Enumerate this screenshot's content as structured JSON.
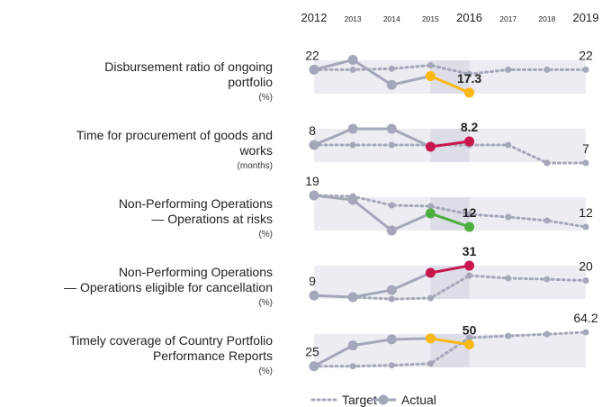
{
  "chart_data": [
    {
      "type": "line",
      "title": "Disbursement ratio of ongoing\nportfolio",
      "unit": "(%)",
      "categories": [
        "2012",
        "2013",
        "2014",
        "2015",
        "2016",
        "2017",
        "2018",
        "2019"
      ],
      "ylim": [
        16,
        25.2
      ],
      "highlight_color": "#fbb812",
      "series": [
        {
          "name": "Target",
          "color": "#a4a7b9",
          "values": [
            22,
            22,
            22.2,
            22.9,
            21.1,
            22,
            22,
            22
          ],
          "value_labels": [
            null,
            null,
            null,
            null,
            null,
            null,
            null,
            "22"
          ]
        },
        {
          "name": "Actual",
          "color": "#a4a7b9",
          "values": [
            22,
            24,
            18.9,
            20.7,
            17.3,
            null,
            null,
            null
          ],
          "value_labels": [
            "22",
            null,
            null,
            null,
            "17.3",
            null,
            null,
            null
          ]
        }
      ]
    },
    {
      "type": "line",
      "title": "Time for procurement of goods and\nworks",
      "unit": "(months)",
      "categories": [
        "2012",
        "2013",
        "2014",
        "2015",
        "2016",
        "2017",
        "2018",
        "2019"
      ],
      "ylim": [
        6.75,
        9.25
      ],
      "highlight_color": "#c8174e",
      "series": [
        {
          "name": "Target",
          "color": "#a4a7b9",
          "values": [
            8,
            8,
            8,
            8,
            8,
            8,
            7,
            7
          ],
          "value_labels": [
            null,
            null,
            null,
            null,
            null,
            null,
            null,
            "7"
          ]
        },
        {
          "name": "Actual",
          "color": "#a4a7b9",
          "values": [
            8,
            8.9,
            8.9,
            7.9,
            8.2,
            null,
            null,
            null
          ],
          "value_labels": [
            "8",
            null,
            null,
            null,
            "8.2",
            null,
            null,
            null
          ]
        }
      ]
    },
    {
      "type": "line",
      "title": "Non-Performing Operations\n— Operations at risks",
      "unit": "(%)",
      "categories": [
        "2012",
        "2013",
        "2014",
        "2015",
        "2016",
        "2017",
        "2018",
        "2019"
      ],
      "ylim": [
        10,
        20
      ],
      "highlight_color": "#4caf3f",
      "series": [
        {
          "name": "Target",
          "color": "#a4a7b9",
          "values": [
            19,
            18.8,
            16.8,
            16.6,
            14.8,
            14.2,
            13.4,
            12
          ],
          "value_labels": [
            null,
            null,
            null,
            null,
            null,
            null,
            null,
            "12"
          ]
        },
        {
          "name": "Actual",
          "color": "#a4a7b9",
          "values": [
            19,
            18,
            11.2,
            15,
            12,
            null,
            null,
            null
          ],
          "value_labels": [
            "19",
            null,
            null,
            null,
            "12",
            null,
            null,
            null
          ]
        }
      ]
    },
    {
      "type": "line",
      "title": "Non-Performing Operations\n— Operations eligible for cancellation",
      "unit": "(%)",
      "categories": [
        "2012",
        "2013",
        "2014",
        "2015",
        "2016",
        "2017",
        "2018",
        "2019"
      ],
      "ylim": [
        2.4,
        35.7
      ],
      "highlight_color": "#c8174e",
      "series": [
        {
          "name": "Target",
          "color": "#a4a7b9",
          "values": [
            null,
            7.7,
            6.3,
            7,
            23.7,
            21.7,
            21,
            20
          ],
          "value_labels": [
            null,
            null,
            null,
            null,
            null,
            null,
            null,
            "20"
          ]
        },
        {
          "name": "Actual",
          "color": "#a4a7b9",
          "values": [
            9,
            7.7,
            13,
            25.7,
            31,
            null,
            null,
            null
          ],
          "value_labels": [
            "9",
            null,
            null,
            null,
            "31",
            null,
            null,
            null
          ]
        }
      ]
    },
    {
      "type": "line",
      "title": "Timely coverage of Country Portfolio\nPerformance Reports",
      "unit": "(%)",
      "categories": [
        "2012",
        "2013",
        "2014",
        "2015",
        "2016",
        "2017",
        "2018",
        "2019"
      ],
      "ylim": [
        17.4,
        69.4
      ],
      "highlight_color": "#fbb812",
      "series": [
        {
          "name": "Target",
          "color": "#a4a7b9",
          "values": [
            25,
            25,
            26,
            28,
            58,
            60,
            62,
            64.2
          ],
          "value_labels": [
            null,
            null,
            null,
            null,
            null,
            null,
            null,
            "64.2"
          ]
        },
        {
          "name": "Actual",
          "color": "#a4a7b9",
          "values": [
            25,
            49,
            56,
            57,
            50,
            null,
            null,
            null
          ],
          "value_labels": [
            "25",
            null,
            null,
            null,
            "50",
            null,
            null,
            null
          ]
        }
      ]
    }
  ]
}
